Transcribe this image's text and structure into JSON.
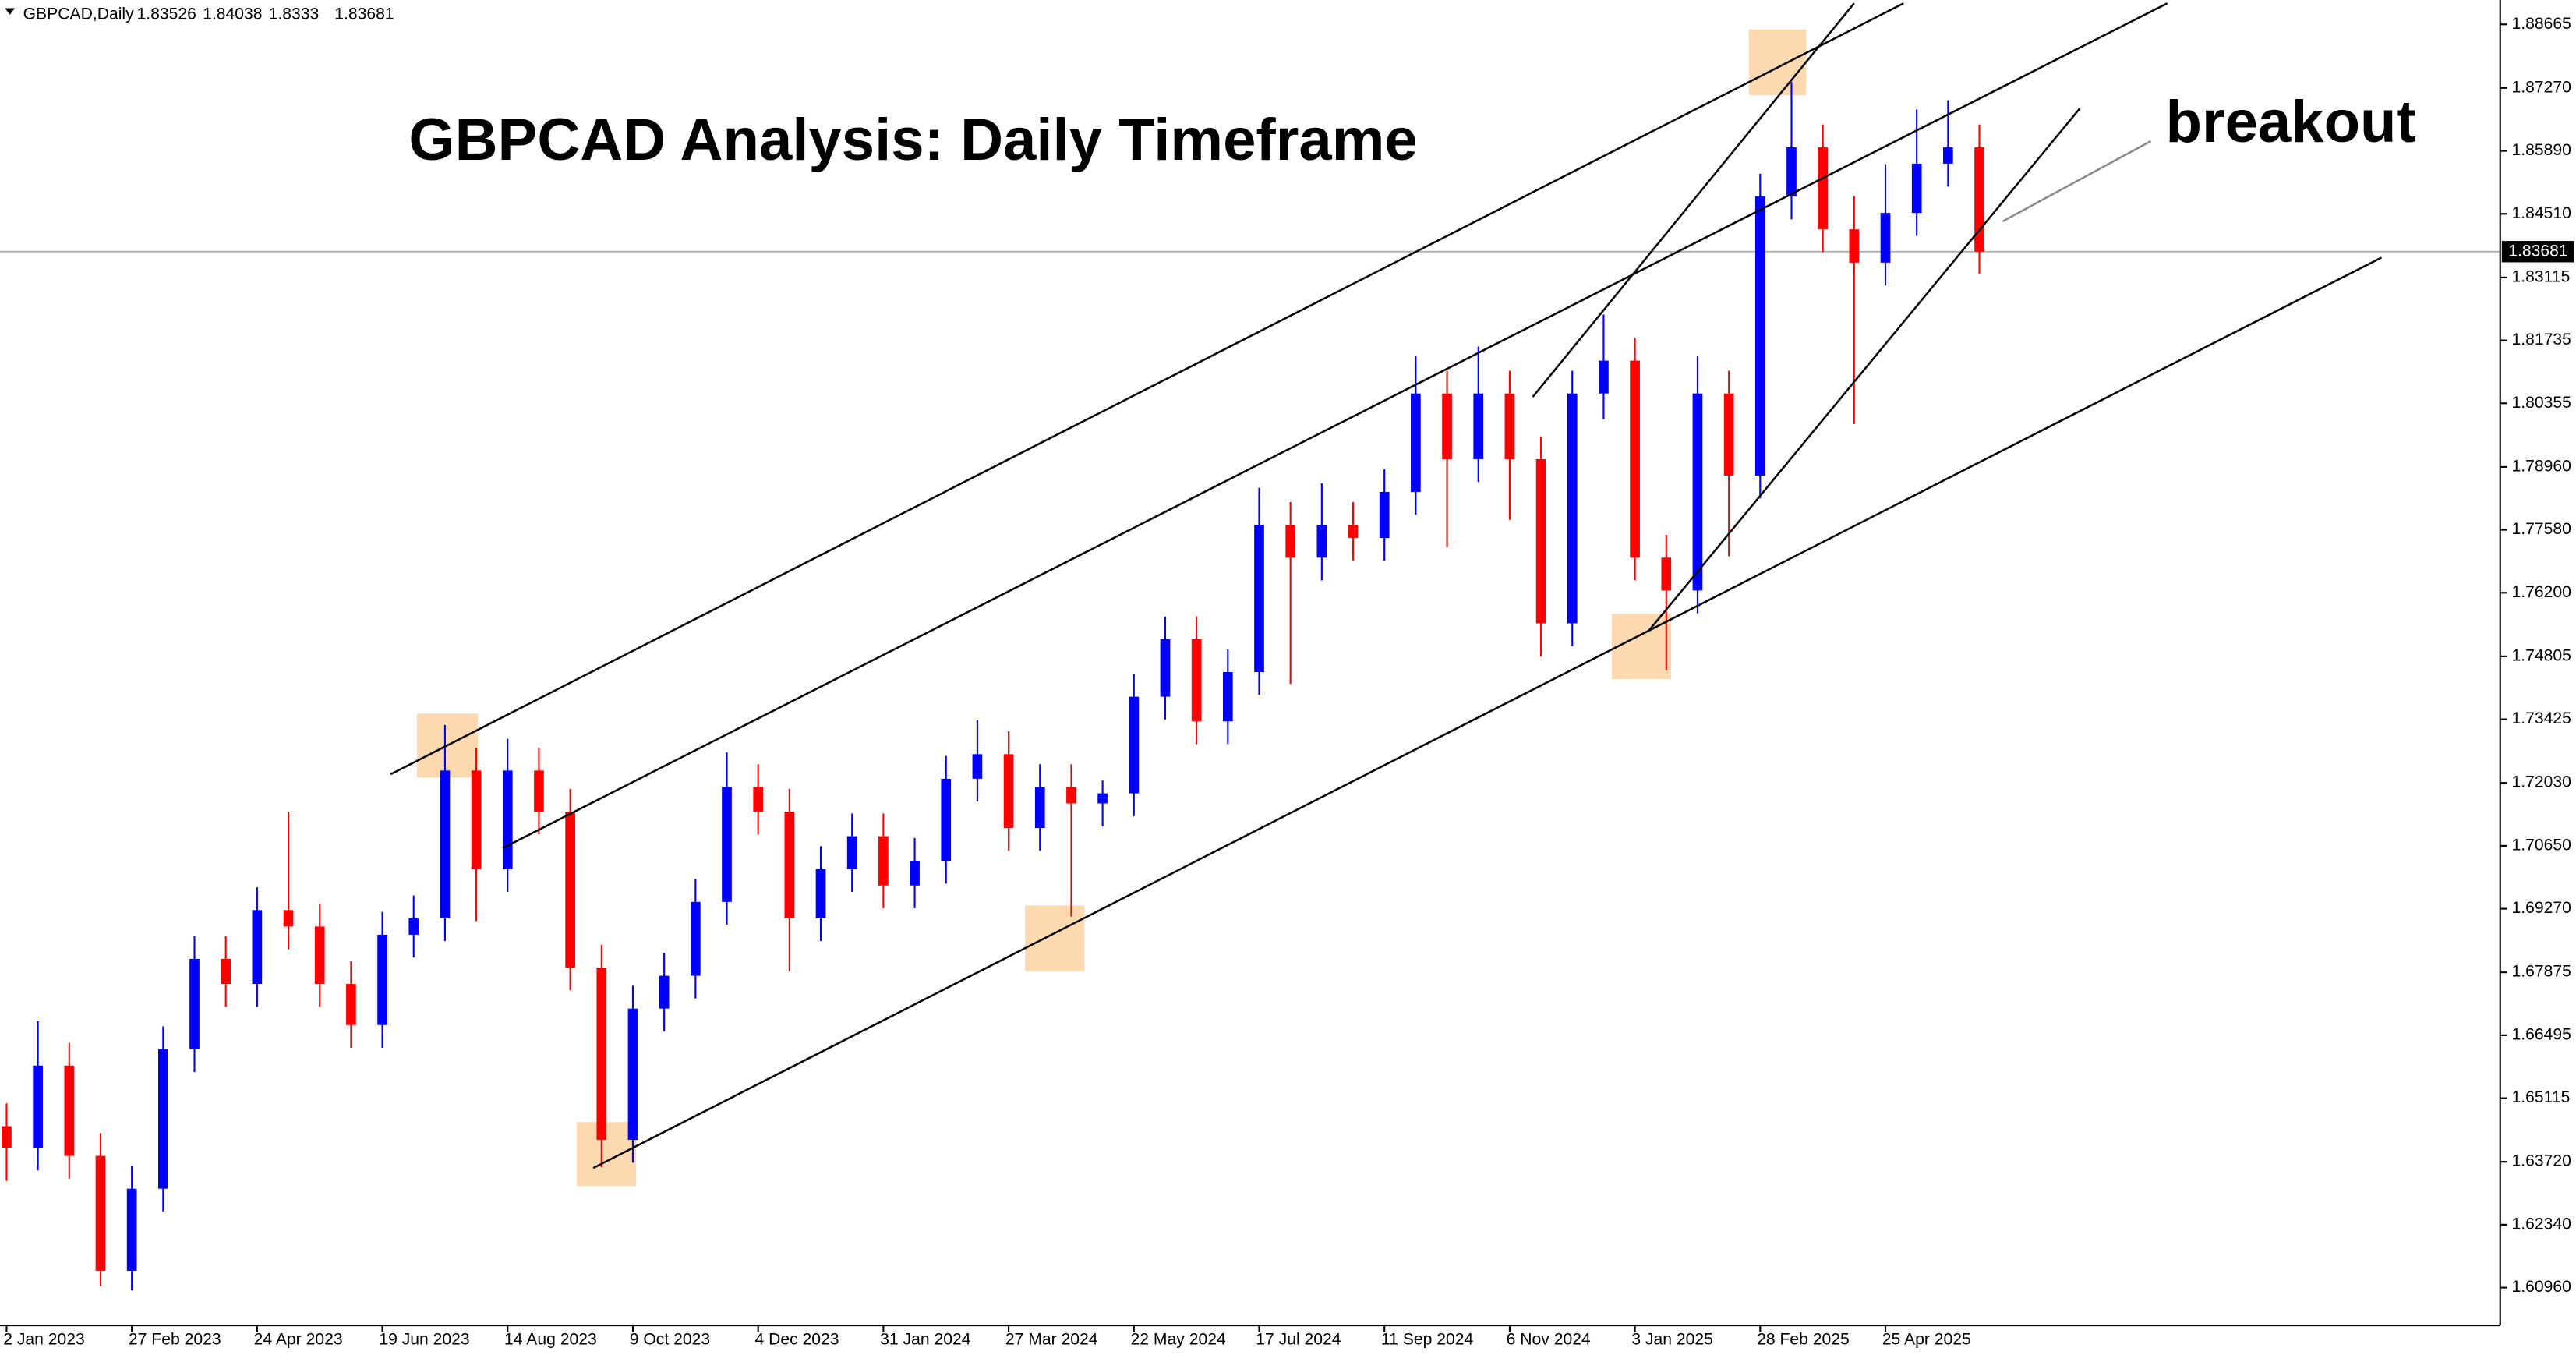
{
  "chart_data": {
    "type": "candlestick",
    "header": {
      "symbol": "GBPCAD,Daily",
      "open": 1.83526,
      "high": 1.84038,
      "low": 1.8333,
      "close": 1.83681
    },
    "title": "GBPCAD Analysis: Daily Timeframe",
    "annotations": [
      "breakout"
    ],
    "last_price": 1.83681,
    "up_color": "#0000ff",
    "down_color": "#ff0000",
    "categories": [
      "2 Jan 2023",
      null,
      null,
      null,
      "27 Feb 2023",
      null,
      null,
      null,
      "24 Apr 2023",
      null,
      null,
      null,
      "19 Jun 2023",
      null,
      null,
      null,
      "14 Aug 2023",
      null,
      null,
      null,
      "9 Oct 2023",
      null,
      null,
      null,
      "4 Dec 2023",
      null,
      null,
      null,
      "31 Jan 2024",
      null,
      null,
      null,
      "27 Mar 2024",
      null,
      null,
      null,
      "22 May 2024",
      null,
      null,
      null,
      "17 Jul 2024",
      null,
      null,
      null,
      "11 Sep 2024",
      null,
      null,
      null,
      "6 Nov 2024",
      null,
      null,
      null,
      "3 Jan 2025",
      null,
      null,
      null,
      "28 Feb 2025",
      null,
      null,
      null,
      "25 Apr 2025",
      null,
      null,
      null
    ],
    "open": [
      1.645,
      1.6403,
      1.6583,
      1.6385,
      1.6133,
      1.6313,
      1.6619,
      1.6817,
      1.6762,
      1.6924,
      1.6888,
      1.6762,
      1.6672,
      1.687,
      1.6906,
      1.723,
      1.7014,
      1.723,
      1.714,
      1.6798,
      1.642,
      1.6708,
      1.678,
      1.6942,
      1.7194,
      1.714,
      1.6906,
      1.7014,
      1.7086,
      1.6978,
      1.7032,
      1.7212,
      1.7266,
      1.7104,
      1.7194,
      1.7158,
      1.718,
      1.7392,
      1.7518,
      1.7338,
      1.7446,
      1.7769,
      1.7697,
      1.7769,
      1.774,
      1.7841,
      1.8057,
      1.7913,
      1.8057,
      1.7913,
      1.7553,
      1.8057,
      1.8129,
      1.7697,
      1.7625,
      1.8057,
      1.7877,
      1.8489,
      1.8597,
      1.8417,
      1.8344,
      1.8453,
      1.8561,
      1.8597
    ],
    "high": [
      1.65,
      1.668,
      1.6633,
      1.6435,
      1.6363,
      1.6669,
      1.6867,
      1.6867,
      1.6974,
      1.714,
      1.6938,
      1.6812,
      1.692,
      1.6956,
      1.733,
      1.728,
      1.73,
      1.728,
      1.719,
      1.6848,
      1.6758,
      1.683,
      1.6992,
      1.727,
      1.7244,
      1.719,
      1.7064,
      1.7136,
      1.7136,
      1.7082,
      1.7262,
      1.734,
      1.7316,
      1.7244,
      1.7244,
      1.7208,
      1.7442,
      1.7568,
      1.7568,
      1.7496,
      1.785,
      1.7819,
      1.786,
      1.7819,
      1.7891,
      1.814,
      1.8107,
      1.816,
      1.8107,
      1.7963,
      1.8107,
      1.823,
      1.8179,
      1.7747,
      1.814,
      1.8107,
      1.8539,
      1.874,
      1.8647,
      1.849,
      1.856,
      1.868,
      1.87,
      1.8647
    ],
    "low": [
      1.633,
      1.6353,
      1.6335,
      1.61,
      1.609,
      1.6263,
      1.6569,
      1.6712,
      1.6712,
      1.6838,
      1.6712,
      1.6622,
      1.6622,
      1.682,
      1.6856,
      1.69,
      1.6964,
      1.709,
      1.6748,
      1.636,
      1.637,
      1.6658,
      1.673,
      1.6892,
      1.709,
      1.679,
      1.6856,
      1.6964,
      1.6928,
      1.6928,
      1.6982,
      1.7162,
      1.7054,
      1.7054,
      1.691,
      1.7108,
      1.713,
      1.7342,
      1.7288,
      1.7288,
      1.7396,
      1.742,
      1.7647,
      1.769,
      1.769,
      1.7791,
      1.772,
      1.7863,
      1.778,
      1.748,
      1.7503,
      1.8,
      1.7647,
      1.745,
      1.7575,
      1.77,
      1.7827,
      1.8439,
      1.8367,
      1.799,
      1.8294,
      1.8403,
      1.8511,
      1.832
    ],
    "close": [
      1.6403,
      1.6583,
      1.6385,
      1.6133,
      1.6313,
      1.6619,
      1.6817,
      1.6762,
      1.6924,
      1.6888,
      1.6762,
      1.6672,
      1.687,
      1.6906,
      1.723,
      1.7014,
      1.723,
      1.714,
      1.6798,
      1.642,
      1.6708,
      1.678,
      1.6942,
      1.7194,
      1.714,
      1.6906,
      1.7014,
      1.7086,
      1.6978,
      1.7032,
      1.7212,
      1.7266,
      1.7104,
      1.7194,
      1.7158,
      1.718,
      1.7392,
      1.7518,
      1.7338,
      1.7446,
      1.7769,
      1.7697,
      1.7769,
      1.774,
      1.7841,
      1.8057,
      1.7913,
      1.8057,
      1.7913,
      1.7553,
      1.8057,
      1.8129,
      1.7697,
      1.7625,
      1.8057,
      1.7877,
      1.8489,
      1.8597,
      1.8417,
      1.8344,
      1.8453,
      1.8561,
      1.8597,
      1.83681
    ],
    "ylim": [
      1.6013,
      1.892
    ],
    "yticks": [
      1.88665,
      {
        "value": 1.8727,
        "label": "1.87270"
      },
      {
        "value": 1.8589,
        "label": "1.85890"
      },
      {
        "value": 1.8451,
        "label": "1.84510"
      },
      1.83115,
      1.81735,
      1.80355,
      {
        "value": 1.7896,
        "label": "1.78960"
      },
      {
        "value": 1.7758,
        "label": "1.77580"
      },
      {
        "value": 1.762,
        "label": "1.76200"
      },
      1.74805,
      1.73425,
      {
        "value": 1.7203,
        "label": "1.72030"
      },
      {
        "value": 1.7065,
        "label": "1.70650"
      },
      {
        "value": 1.6927,
        "label": "1.69270"
      },
      1.67875,
      1.66495,
      1.65115,
      {
        "value": 1.6372,
        "label": "1.63720"
      },
      {
        "value": 1.6234,
        "label": "1.62340"
      },
      {
        "value": 1.6096,
        "label": "1.60960"
      }
    ]
  }
}
